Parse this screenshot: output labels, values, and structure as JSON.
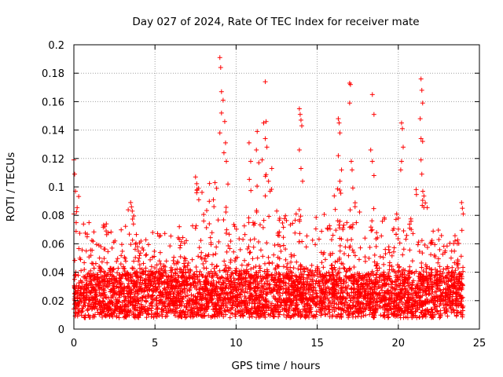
{
  "chart_data": {
    "type": "scatter",
    "title": "Day 027 of 2024, Rate Of TEC Index for receiver mate",
    "xlabel": "GPS time / hours",
    "ylabel": "ROTI / TECUs",
    "xlim": [
      0,
      25
    ],
    "ylim": [
      0,
      0.2
    ],
    "x_ticks": [
      0,
      5,
      10,
      15,
      20,
      25
    ],
    "x_tick_labels": [
      "0",
      "5",
      "10",
      "15",
      "20",
      "25"
    ],
    "y_ticks": [
      0,
      0.02,
      0.04,
      0.06,
      0.08,
      0.1,
      0.12,
      0.14,
      0.16,
      0.18,
      0.2
    ],
    "y_tick_labels": [
      "0",
      "0.02",
      "0.04",
      "0.06",
      "0.08",
      "0.1",
      "0.12",
      "0.14",
      "0.16",
      "0.18",
      "0.2"
    ],
    "grid": true,
    "marker": "+",
    "color": "#ff0000",
    "series": [
      {
        "name": "ROTI",
        "outliers": [
          [
            9.0,
            0.191
          ],
          [
            9.05,
            0.184
          ],
          [
            9.1,
            0.167
          ],
          [
            9.2,
            0.161
          ],
          [
            9.1,
            0.152
          ],
          [
            9.3,
            0.146
          ],
          [
            9.0,
            0.138
          ],
          [
            9.35,
            0.131
          ],
          [
            9.25,
            0.124
          ],
          [
            9.4,
            0.118
          ],
          [
            11.8,
            0.174
          ],
          [
            11.85,
            0.146
          ],
          [
            11.7,
            0.145
          ],
          [
            11.8,
            0.134
          ],
          [
            11.9,
            0.128
          ],
          [
            11.3,
            0.139
          ],
          [
            11.25,
            0.126
          ],
          [
            11.4,
            0.117
          ],
          [
            11.6,
            0.119
          ],
          [
            12.2,
            0.113
          ],
          [
            10.8,
            0.131
          ],
          [
            10.9,
            0.118
          ],
          [
            12.0,
            0.104
          ],
          [
            12.1,
            0.097
          ],
          [
            13.9,
            0.155
          ],
          [
            13.95,
            0.151
          ],
          [
            14.0,
            0.147
          ],
          [
            14.05,
            0.143
          ],
          [
            13.9,
            0.126
          ],
          [
            14.0,
            0.113
          ],
          [
            14.1,
            0.104
          ],
          [
            16.3,
            0.148
          ],
          [
            16.35,
            0.145
          ],
          [
            16.4,
            0.138
          ],
          [
            16.3,
            0.122
          ],
          [
            16.5,
            0.112
          ],
          [
            16.4,
            0.104
          ],
          [
            17.0,
            0.173
          ],
          [
            17.05,
            0.172
          ],
          [
            17.0,
            0.159
          ],
          [
            17.1,
            0.118
          ],
          [
            17.15,
            0.112
          ],
          [
            18.4,
            0.165
          ],
          [
            18.5,
            0.151
          ],
          [
            18.3,
            0.126
          ],
          [
            18.4,
            0.118
          ],
          [
            18.5,
            0.108
          ],
          [
            20.2,
            0.145
          ],
          [
            20.25,
            0.141
          ],
          [
            20.3,
            0.128
          ],
          [
            20.2,
            0.118
          ],
          [
            20.15,
            0.112
          ],
          [
            21.4,
            0.176
          ],
          [
            21.45,
            0.168
          ],
          [
            21.5,
            0.159
          ],
          [
            21.35,
            0.148
          ],
          [
            21.4,
            0.134
          ],
          [
            21.5,
            0.132
          ],
          [
            21.4,
            0.119
          ],
          [
            21.45,
            0.109
          ],
          [
            0.0,
            0.119
          ],
          [
            0.05,
            0.109
          ],
          [
            0.1,
            0.097
          ],
          [
            0.0,
            0.081
          ],
          [
            7.5,
            0.107
          ],
          [
            7.6,
            0.098
          ],
          [
            7.7,
            0.091
          ],
          [
            8.7,
            0.103
          ],
          [
            8.8,
            0.099
          ],
          [
            8.6,
            0.091
          ],
          [
            3.5,
            0.089
          ],
          [
            3.55,
            0.086
          ],
          [
            3.6,
            0.083
          ],
          [
            23.9,
            0.089
          ],
          [
            23.95,
            0.085
          ],
          [
            24.0,
            0.081
          ],
          [
            2.0,
            0.074
          ],
          [
            1.9,
            0.072
          ],
          [
            6.5,
            0.072
          ],
          [
            19.9,
            0.081
          ],
          [
            20.0,
            0.078
          ],
          [
            22.5,
            0.063
          ],
          [
            23.5,
            0.062
          ]
        ],
        "bands": [
          {
            "x_from": 0.0,
            "x_to": 0.3,
            "peak": 0.095
          },
          {
            "x_from": 0.3,
            "x_to": 3.3,
            "peak": 0.075
          },
          {
            "x_from": 3.3,
            "x_to": 3.7,
            "peak": 0.089
          },
          {
            "x_from": 3.7,
            "x_to": 7.3,
            "peak": 0.068
          },
          {
            "x_from": 7.3,
            "x_to": 9.5,
            "peak": 0.105
          },
          {
            "x_from": 9.5,
            "x_to": 10.6,
            "peak": 0.075
          },
          {
            "x_from": 10.6,
            "x_to": 12.5,
            "peak": 0.115
          },
          {
            "x_from": 12.5,
            "x_to": 16.0,
            "peak": 0.085
          },
          {
            "x_from": 16.0,
            "x_to": 18.6,
            "peak": 0.1
          },
          {
            "x_from": 18.6,
            "x_to": 21.0,
            "peak": 0.08
          },
          {
            "x_from": 21.0,
            "x_to": 22.0,
            "peak": 0.1
          },
          {
            "x_from": 22.0,
            "x_to": 24.0,
            "peak": 0.07
          }
        ],
        "baseline_range": [
          0.008,
          0.038
        ]
      }
    ]
  }
}
